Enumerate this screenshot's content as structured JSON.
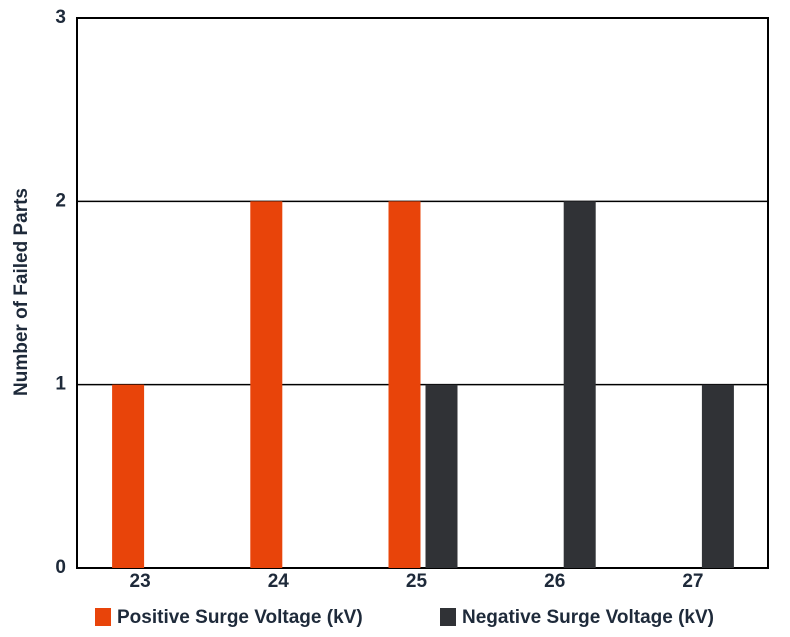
{
  "chart_data": {
    "type": "bar",
    "y_label": "Number of Failed Parts",
    "categories": [
      "23",
      "24",
      "25",
      "26",
      "27"
    ],
    "series": [
      {
        "name": "Positive Surge Voltage (kV)",
        "color": "#e8440a",
        "values": [
          1,
          2,
          2,
          0,
          0
        ]
      },
      {
        "name": "Negative Surge Voltage (kV)",
        "color": "#303236",
        "values": [
          0,
          0,
          1,
          2,
          1
        ]
      }
    ],
    "ylim": [
      0,
      3
    ],
    "yticks": [
      0,
      1,
      2,
      3
    ],
    "grid": true
  }
}
